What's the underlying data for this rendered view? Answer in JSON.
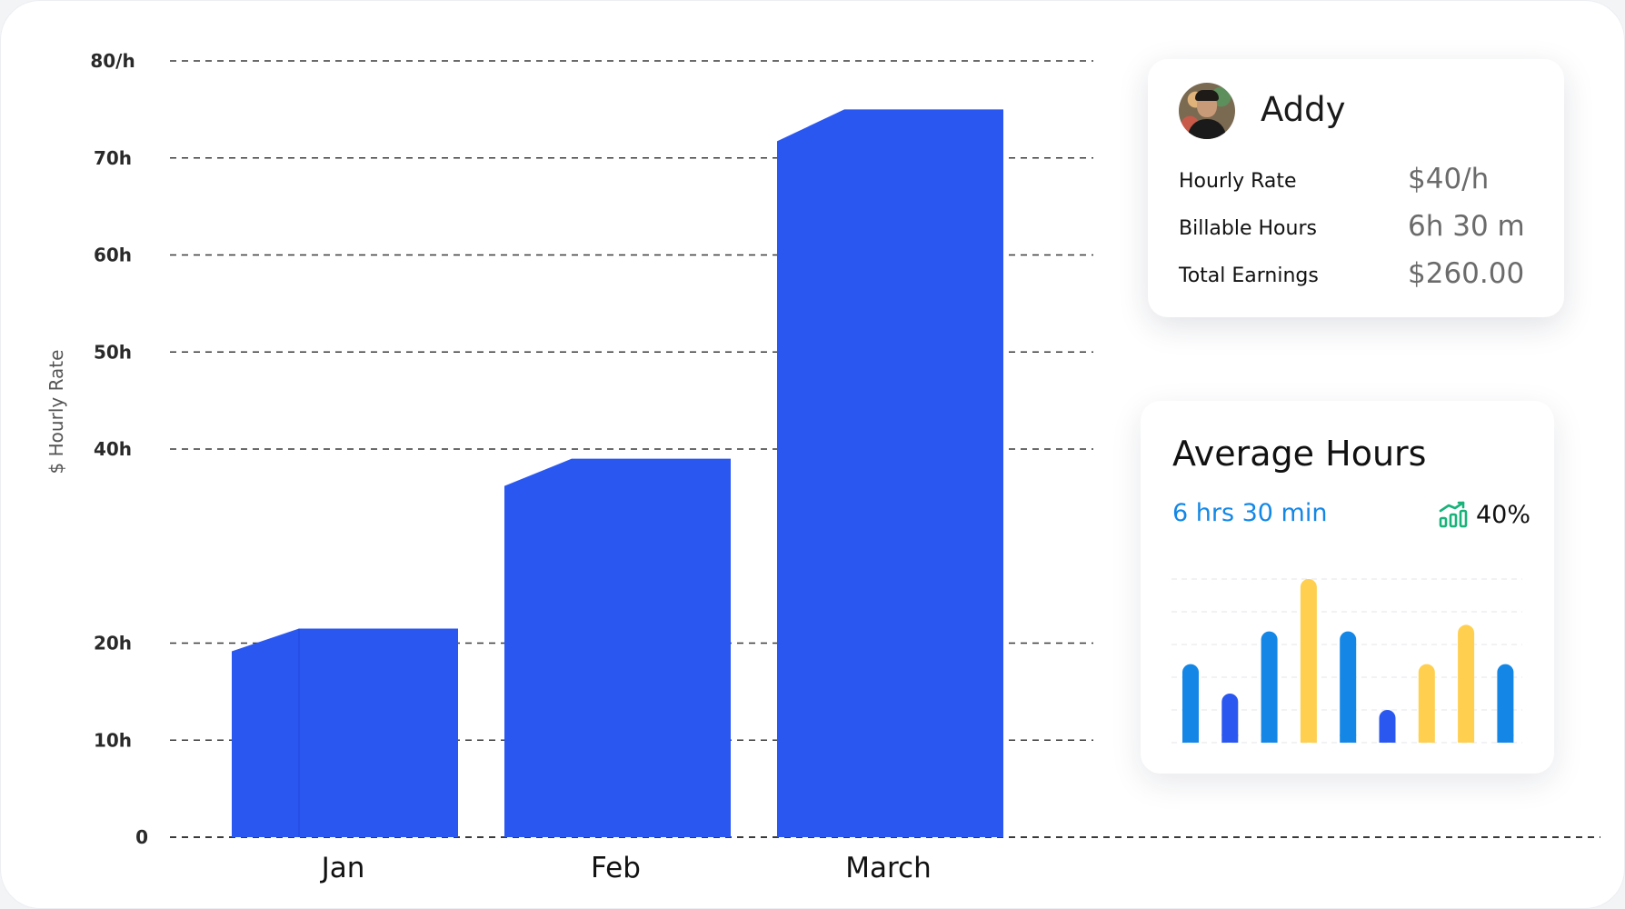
{
  "chart_data": [
    {
      "type": "bar",
      "categories": [
        "Jan",
        "Feb",
        "March"
      ],
      "values": [
        21.5,
        39,
        75
      ],
      "yticks": [
        "0",
        "10h",
        "20h",
        "40h",
        "50h",
        "60h",
        "70h",
        "80/h"
      ],
      "ylabel": "$ Hourly Rate",
      "xlabel": "",
      "ylim": [
        0,
        80
      ],
      "grid": true,
      "color": "#2a57f0"
    },
    {
      "type": "bar",
      "title": "Average Hours",
      "values": [
        48,
        30,
        68,
        100,
        68,
        20,
        48,
        72,
        48
      ],
      "colors": [
        "#1487e6",
        "#2a57f0",
        "#1487e6",
        "#ffcf4f",
        "#1487e6",
        "#2a57f0",
        "#ffcf4f",
        "#ffcf4f",
        "#1487e6"
      ],
      "ylim": [
        0,
        100
      ],
      "grid": true
    }
  ],
  "profile": {
    "name": "Addy",
    "rows": [
      {
        "label": "Hourly Rate",
        "value": "$40/h"
      },
      {
        "label": "Billable Hours",
        "value": "6h 30 m"
      },
      {
        "label": "Total Earnings",
        "value": "$260.00"
      }
    ]
  },
  "average_hours": {
    "title": "Average Hours",
    "value": "6 hrs 30 min",
    "change": "40%",
    "trend_icon": "trending-up-chart-icon",
    "trend_color": "#18b27a"
  },
  "colors": {
    "primary_bar": "#2a57f0",
    "accent_blue": "#1487e6",
    "accent_yellow": "#ffcf4f"
  }
}
